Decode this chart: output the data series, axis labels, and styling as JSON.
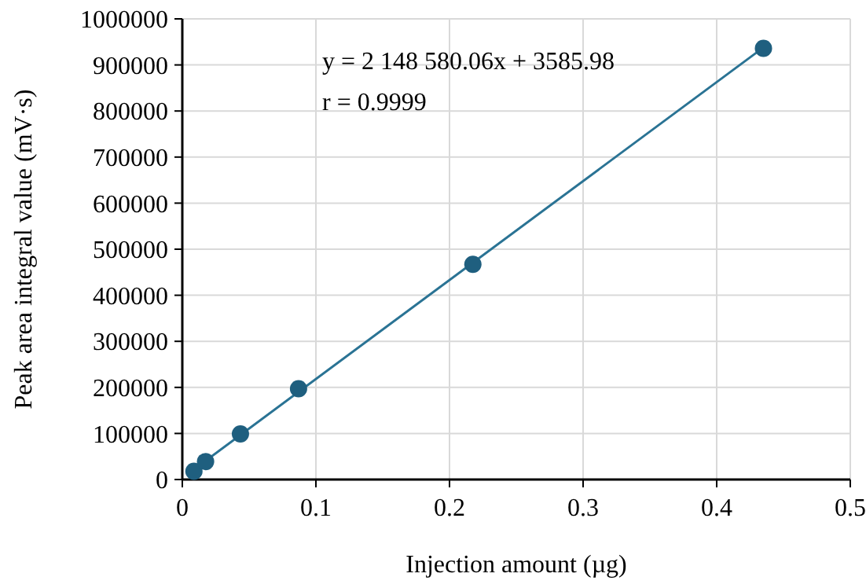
{
  "chart_data": {
    "type": "scatter",
    "xlabel": "Injection amount (µg)",
    "ylabel": "Peak area integral value (mV·s)",
    "series": [
      {
        "color": "#1f5f7f",
        "marker": "circle",
        "x": [
          0.0087,
          0.0174,
          0.0435,
          0.087,
          0.2175,
          0.435
        ],
        "values": [
          18000,
          39000,
          99000,
          197000,
          467000,
          936000
        ]
      },
      {
        "type": "line",
        "color": "#2a7394",
        "line_style": "solid",
        "x": [
          0.0087,
          0.435
        ],
        "values": [
          22000,
          938000
        ]
      }
    ],
    "xlim": [
      0,
      0.5
    ],
    "xticks": [
      0,
      0.1,
      0.2,
      0.3,
      0.4,
      0.5
    ],
    "ylim": [
      0,
      1000000
    ],
    "yticks": [
      0,
      100000,
      200000,
      300000,
      400000,
      500000,
      600000,
      700000,
      800000,
      900000,
      1000000
    ],
    "grid": true,
    "annotations": [
      "y = 2 148 580.06x + 3585.98",
      "r = 0.9999"
    ]
  }
}
